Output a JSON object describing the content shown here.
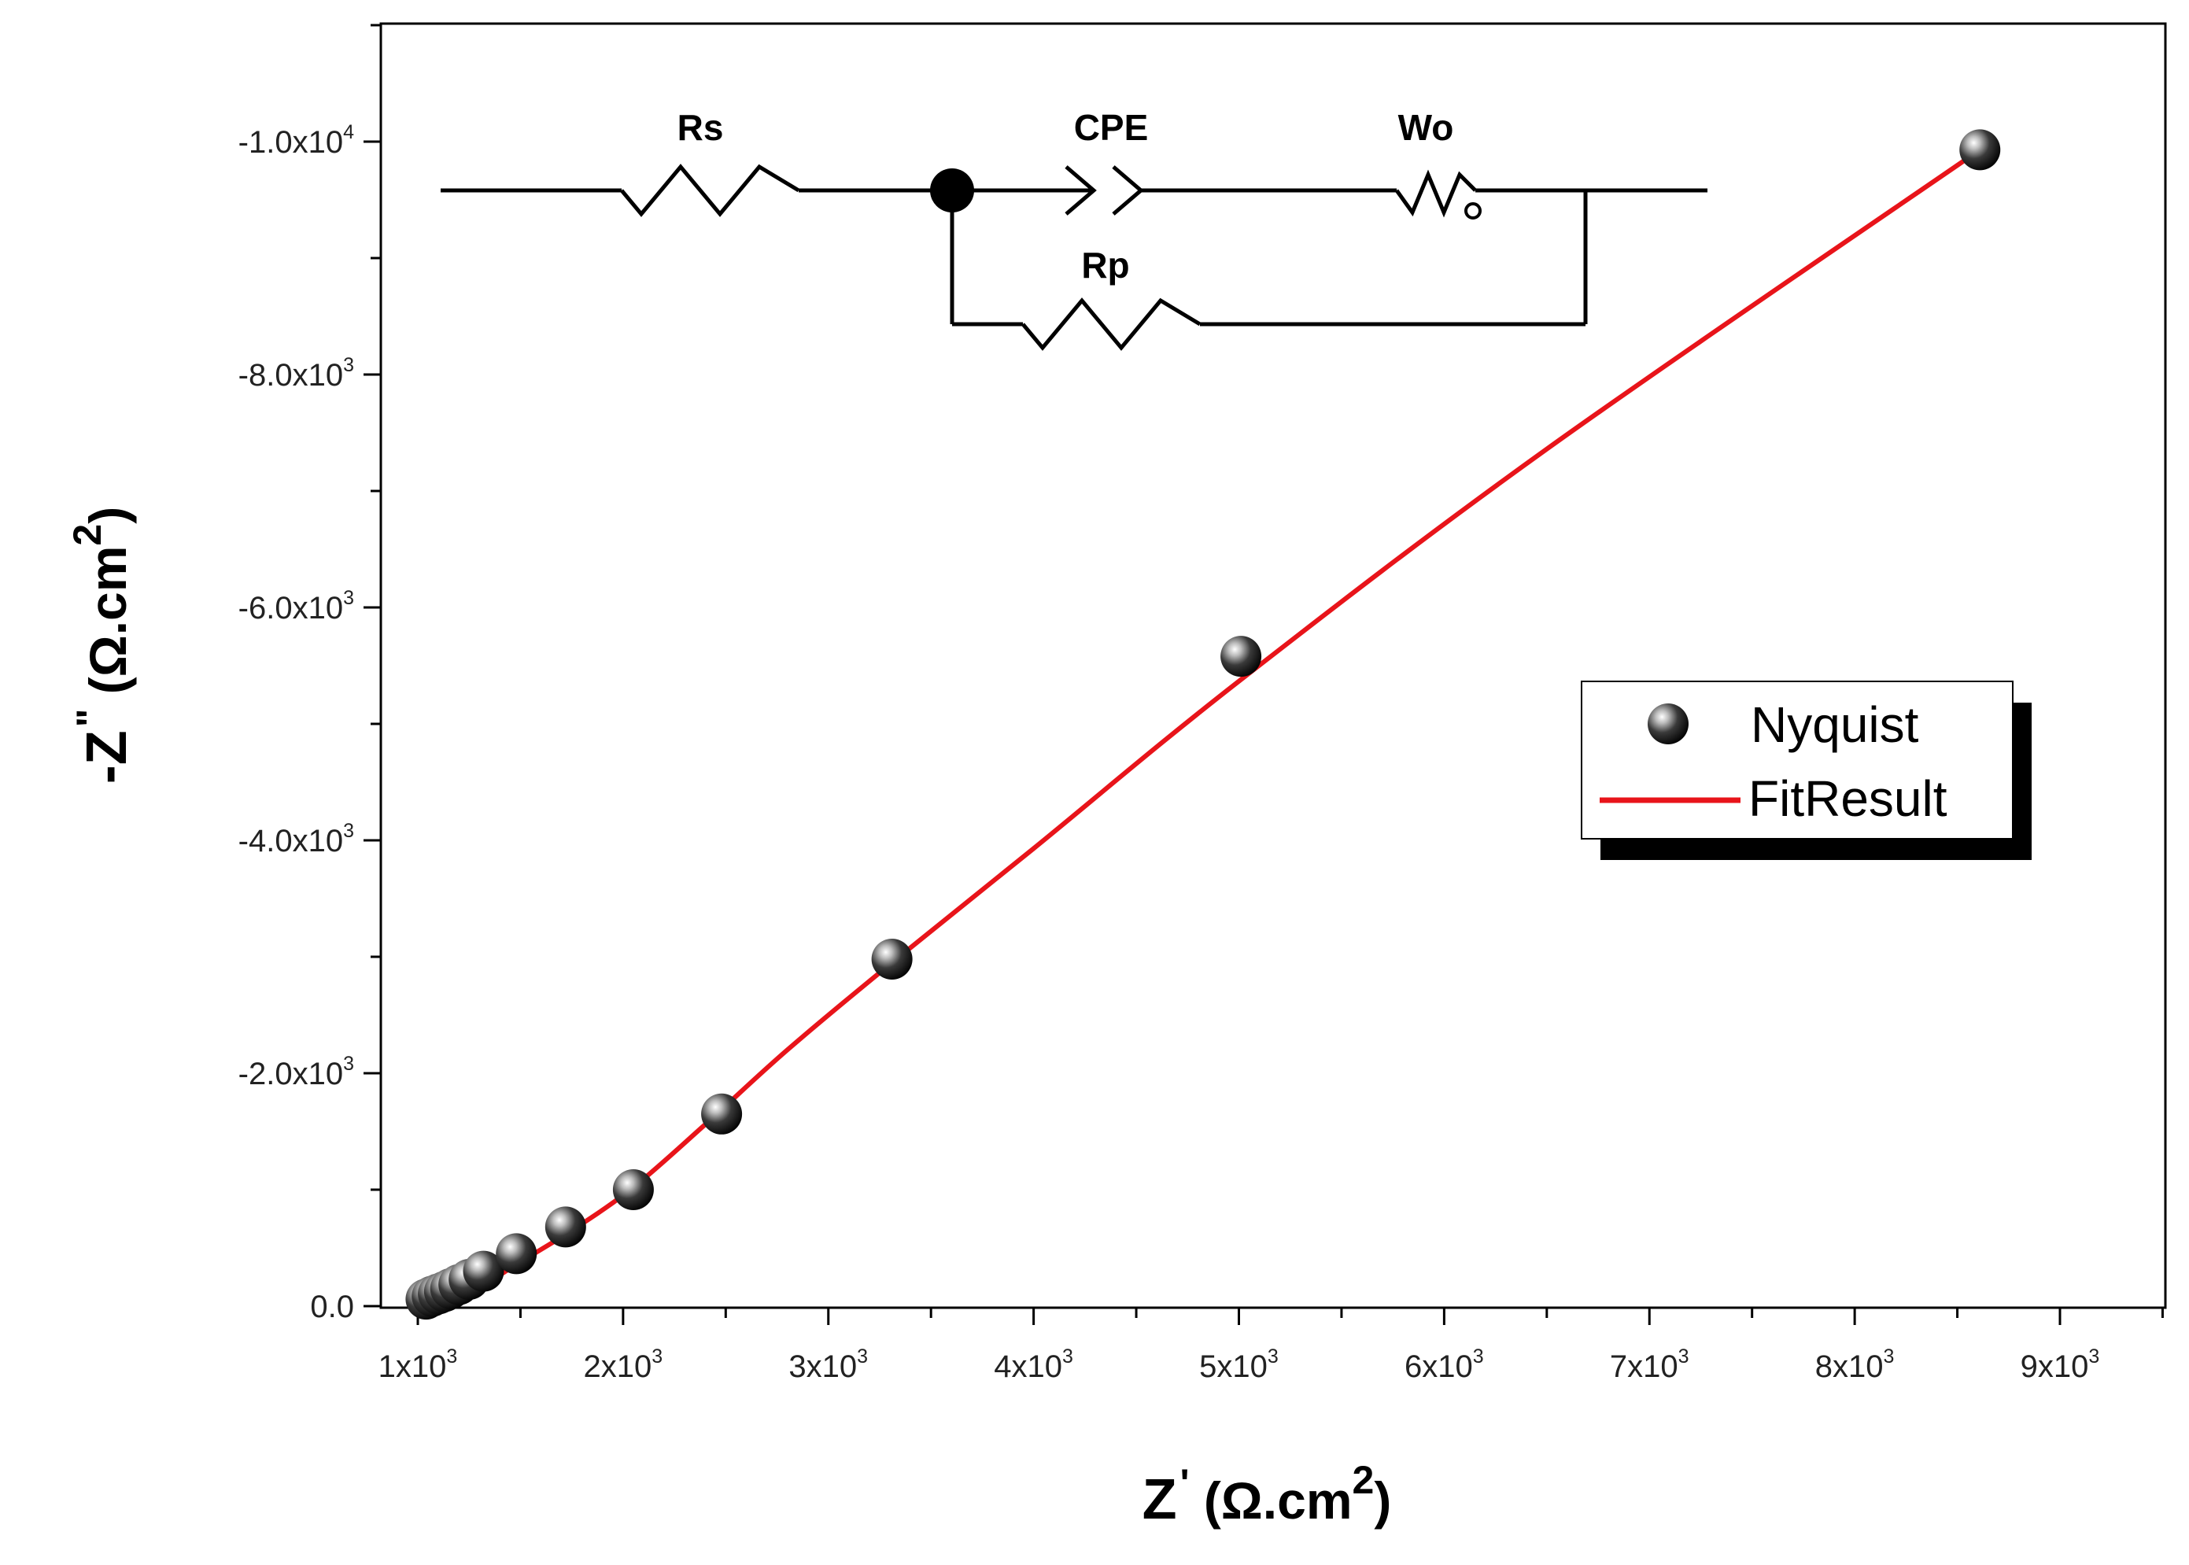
{
  "chart_data": {
    "type": "scatter",
    "title": "",
    "xlabel": {
      "main": "Z",
      "prime": "'",
      "unit": " (Ω.cm",
      "unit_sup": "2",
      "unit_close": ")"
    },
    "ylabel": {
      "main": "-Z",
      "prime": "\"",
      "unit": " (Ω.cm",
      "unit_sup": "2",
      "unit_close": ")"
    },
    "xlim": [
      1000,
      9500
    ],
    "ylim": [
      -11000,
      0
    ],
    "y_inverted": true,
    "x_ticks": [
      {
        "value": 1000,
        "mant": "1x10",
        "exp": "3"
      },
      {
        "value": 2000,
        "mant": "2x10",
        "exp": "3"
      },
      {
        "value": 3000,
        "mant": "3x10",
        "exp": "3"
      },
      {
        "value": 4000,
        "mant": "4x10",
        "exp": "3"
      },
      {
        "value": 5000,
        "mant": "5x10",
        "exp": "3"
      },
      {
        "value": 6000,
        "mant": "6x10",
        "exp": "3"
      },
      {
        "value": 7000,
        "mant": "7x10",
        "exp": "3"
      },
      {
        "value": 8000,
        "mant": "8x10",
        "exp": "3"
      },
      {
        "value": 9000,
        "mant": "9x10",
        "exp": "3"
      }
    ],
    "y_ticks": [
      {
        "value": 0,
        "mant": "0.0",
        "exp": ""
      },
      {
        "value": -2000,
        "mant": "-2.0x10",
        "exp": "3"
      },
      {
        "value": -4000,
        "mant": "-4.0x10",
        "exp": "3"
      },
      {
        "value": -6000,
        "mant": "-6.0x10",
        "exp": "3"
      },
      {
        "value": -8000,
        "mant": "-8.0x10",
        "exp": "3"
      },
      {
        "value": -10000,
        "mant": "-1.0x10",
        "exp": "4"
      }
    ],
    "series": [
      {
        "name": "Nyquist",
        "kind": "scatter",
        "color": "#1a1a1a",
        "points": [
          [
            1040,
            -60
          ],
          [
            1070,
            -85
          ],
          [
            1100,
            -105
          ],
          [
            1130,
            -125
          ],
          [
            1160,
            -150
          ],
          [
            1200,
            -185
          ],
          [
            1250,
            -230
          ],
          [
            1320,
            -300
          ],
          [
            1480,
            -450
          ],
          [
            1720,
            -680
          ],
          [
            2050,
            -1000
          ],
          [
            2480,
            -1650
          ],
          [
            3310,
            -2980
          ],
          [
            5010,
            -5580
          ],
          [
            8610,
            -9930
          ]
        ]
      },
      {
        "name": "FitResult",
        "kind": "line",
        "color": "#e8141a",
        "points": [
          [
            1060,
            0
          ],
          [
            1150,
            -40
          ],
          [
            1300,
            -160
          ],
          [
            1500,
            -380
          ],
          [
            1750,
            -650
          ],
          [
            2050,
            -1020
          ],
          [
            2400,
            -1560
          ],
          [
            2800,
            -2200
          ],
          [
            3310,
            -2950
          ],
          [
            4000,
            -3930
          ],
          [
            5010,
            -5380
          ],
          [
            6500,
            -7360
          ],
          [
            8610,
            -9930
          ]
        ]
      }
    ],
    "legend": {
      "position": "right"
    }
  },
  "circuit": {
    "labels": {
      "rs": "Rs",
      "cpe": "CPE",
      "wo": "Wo",
      "rp": "Rp"
    }
  },
  "colors": {
    "fit": "#e8141a",
    "axis": "#000000",
    "marker": "#1a1a1a"
  }
}
